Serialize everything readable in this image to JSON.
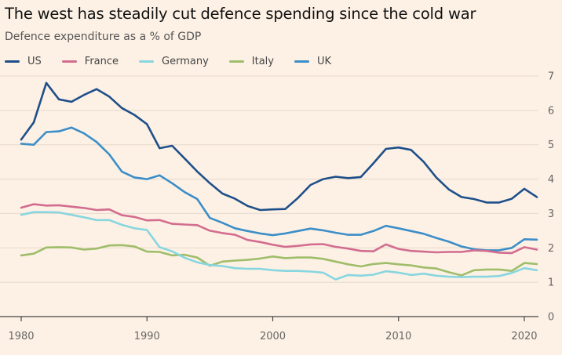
{
  "title": "The west has steadily cut defence spending since the cold war",
  "subtitle": "Defence expenditure as a % of GDP",
  "chart_data": {
    "type": "line",
    "title": "The west has steadily cut defence spending since the cold war",
    "subtitle": "Defence expenditure as a % of GDP",
    "xlabel": "",
    "ylabel": "",
    "xlim": [
      1980,
      2021
    ],
    "ylim": [
      0,
      7
    ],
    "x_ticks": [
      1980,
      1990,
      2000,
      2010,
      2020
    ],
    "y_ticks": [
      0,
      1,
      2,
      3,
      4,
      5,
      6,
      7
    ],
    "y_axis_side": "right",
    "grid": "horizontal",
    "legend_position": "top-left",
    "x": [
      1980,
      1981,
      1982,
      1983,
      1984,
      1985,
      1986,
      1987,
      1988,
      1989,
      1990,
      1991,
      1992,
      1993,
      1994,
      1995,
      1996,
      1997,
      1998,
      1999,
      2000,
      2001,
      2002,
      2003,
      2004,
      2005,
      2006,
      2007,
      2008,
      2009,
      2010,
      2011,
      2012,
      2013,
      2014,
      2015,
      2016,
      2017,
      2018,
      2019,
      2020,
      2021
    ],
    "series": [
      {
        "name": "US",
        "color": "#1f4f8a",
        "values": [
          5.15,
          5.65,
          6.8,
          6.32,
          6.25,
          6.45,
          6.62,
          6.4,
          6.07,
          5.87,
          5.6,
          4.9,
          4.97,
          4.6,
          4.22,
          3.88,
          3.58,
          3.43,
          3.22,
          3.1,
          3.12,
          3.13,
          3.45,
          3.83,
          4.0,
          4.07,
          4.03,
          4.06,
          4.46,
          4.88,
          4.92,
          4.85,
          4.5,
          4.05,
          3.7,
          3.48,
          3.42,
          3.32,
          3.32,
          3.43,
          3.72,
          3.48
        ]
      },
      {
        "name": "France",
        "color": "#d26d8f",
        "values": [
          3.17,
          3.27,
          3.23,
          3.24,
          3.2,
          3.16,
          3.1,
          3.12,
          2.95,
          2.9,
          2.8,
          2.81,
          2.7,
          2.68,
          2.66,
          2.5,
          2.43,
          2.38,
          2.23,
          2.17,
          2.09,
          2.03,
          2.06,
          2.1,
          2.11,
          2.03,
          1.98,
          1.91,
          1.9,
          2.1,
          1.97,
          1.91,
          1.89,
          1.87,
          1.88,
          1.88,
          1.93,
          1.91,
          1.86,
          1.85,
          2.02,
          1.95
        ]
      },
      {
        "name": "Germany",
        "color": "#88d6e0",
        "values": [
          2.96,
          3.04,
          3.04,
          3.03,
          2.96,
          2.89,
          2.81,
          2.81,
          2.67,
          2.57,
          2.52,
          2.02,
          1.9,
          1.71,
          1.58,
          1.5,
          1.47,
          1.41,
          1.39,
          1.39,
          1.35,
          1.33,
          1.33,
          1.31,
          1.28,
          1.08,
          1.21,
          1.19,
          1.22,
          1.32,
          1.28,
          1.21,
          1.25,
          1.19,
          1.16,
          1.15,
          1.16,
          1.16,
          1.18,
          1.27,
          1.41,
          1.35
        ]
      },
      {
        "name": "Italy",
        "color": "#9fbd6a",
        "values": [
          1.78,
          1.83,
          2.01,
          2.02,
          2.01,
          1.95,
          1.98,
          2.07,
          2.08,
          2.04,
          1.89,
          1.88,
          1.78,
          1.8,
          1.72,
          1.48,
          1.6,
          1.63,
          1.65,
          1.69,
          1.75,
          1.7,
          1.72,
          1.72,
          1.68,
          1.6,
          1.52,
          1.46,
          1.53,
          1.56,
          1.52,
          1.49,
          1.43,
          1.4,
          1.29,
          1.2,
          1.35,
          1.37,
          1.37,
          1.33,
          1.56,
          1.53
        ]
      },
      {
        "name": "UK",
        "color": "#3b8ec8",
        "values": [
          5.03,
          5.0,
          5.37,
          5.39,
          5.5,
          5.33,
          5.08,
          4.72,
          4.22,
          4.05,
          4.0,
          4.11,
          3.88,
          3.62,
          3.42,
          2.87,
          2.73,
          2.57,
          2.49,
          2.42,
          2.37,
          2.42,
          2.49,
          2.56,
          2.51,
          2.44,
          2.38,
          2.38,
          2.49,
          2.64,
          2.57,
          2.49,
          2.41,
          2.29,
          2.18,
          2.04,
          1.96,
          1.93,
          1.93,
          2.0,
          2.25,
          2.24
        ]
      }
    ]
  }
}
